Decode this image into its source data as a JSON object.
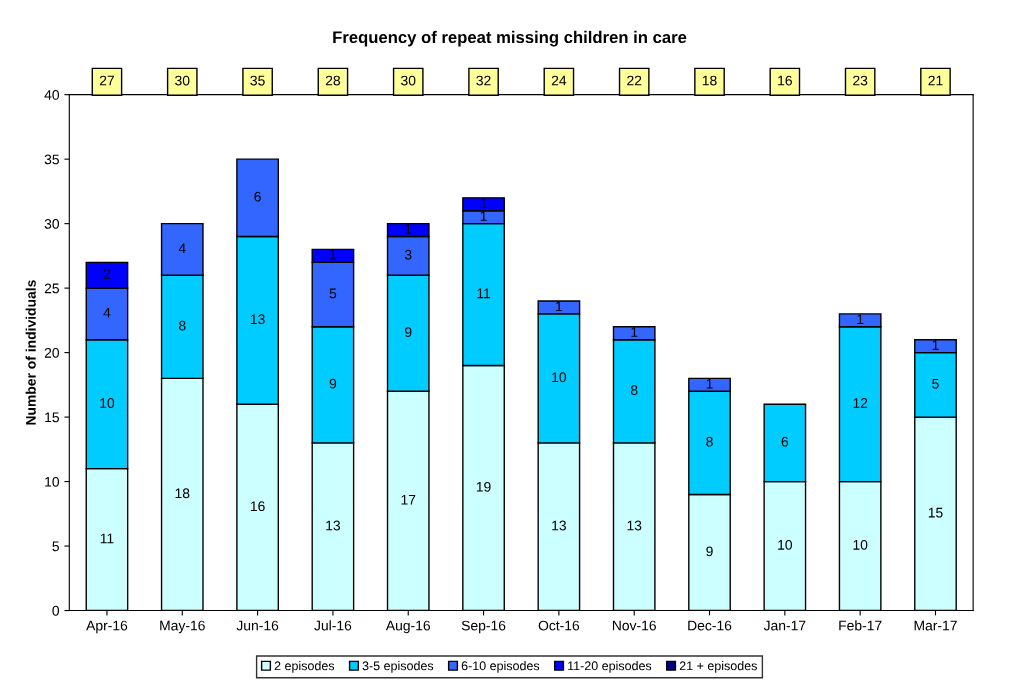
{
  "chart_data": {
    "type": "bar",
    "stacked": true,
    "title": "Frequency of repeat missing children in care",
    "ylabel": "Number of individuals",
    "categories": [
      "Apr-16",
      "May-16",
      "Jun-16",
      "Jul-16",
      "Aug-16",
      "Sep-16",
      "Oct-16",
      "Nov-16",
      "Dec-16",
      "Jan-17",
      "Feb-17",
      "Mar-17"
    ],
    "series": [
      {
        "name": "2 episodes",
        "color": "#ccffff",
        "values": [
          11,
          18,
          16,
          13,
          17,
          19,
          13,
          13,
          9,
          10,
          10,
          15
        ]
      },
      {
        "name": "3-5 episodes",
        "color": "#00ccff",
        "values": [
          10,
          8,
          13,
          9,
          9,
          11,
          10,
          8,
          8,
          6,
          12,
          5
        ]
      },
      {
        "name": "6-10 episodes",
        "color": "#3366ff",
        "values": [
          4,
          4,
          6,
          5,
          3,
          1,
          1,
          1,
          1,
          null,
          1,
          1
        ]
      },
      {
        "name": "11-20 episodes",
        "color": "#0000ff",
        "values": [
          2,
          null,
          null,
          1,
          1,
          1,
          null,
          null,
          null,
          null,
          null,
          null
        ]
      },
      {
        "name": "21 + episodes",
        "color": "#000080",
        "values": [
          null,
          null,
          null,
          null,
          null,
          null,
          null,
          null,
          null,
          null,
          null,
          null
        ]
      }
    ],
    "annotations": [
      "27",
      "30",
      "35",
      "28",
      "30",
      "32",
      "24",
      "22",
      "18",
      "16",
      "23",
      "21"
    ],
    "ylim": [
      0,
      40
    ],
    "yticks": [
      0,
      5,
      10,
      15,
      20,
      25,
      30,
      35,
      40
    ],
    "data_labels": true,
    "grid": false,
    "legend": "bottom"
  }
}
